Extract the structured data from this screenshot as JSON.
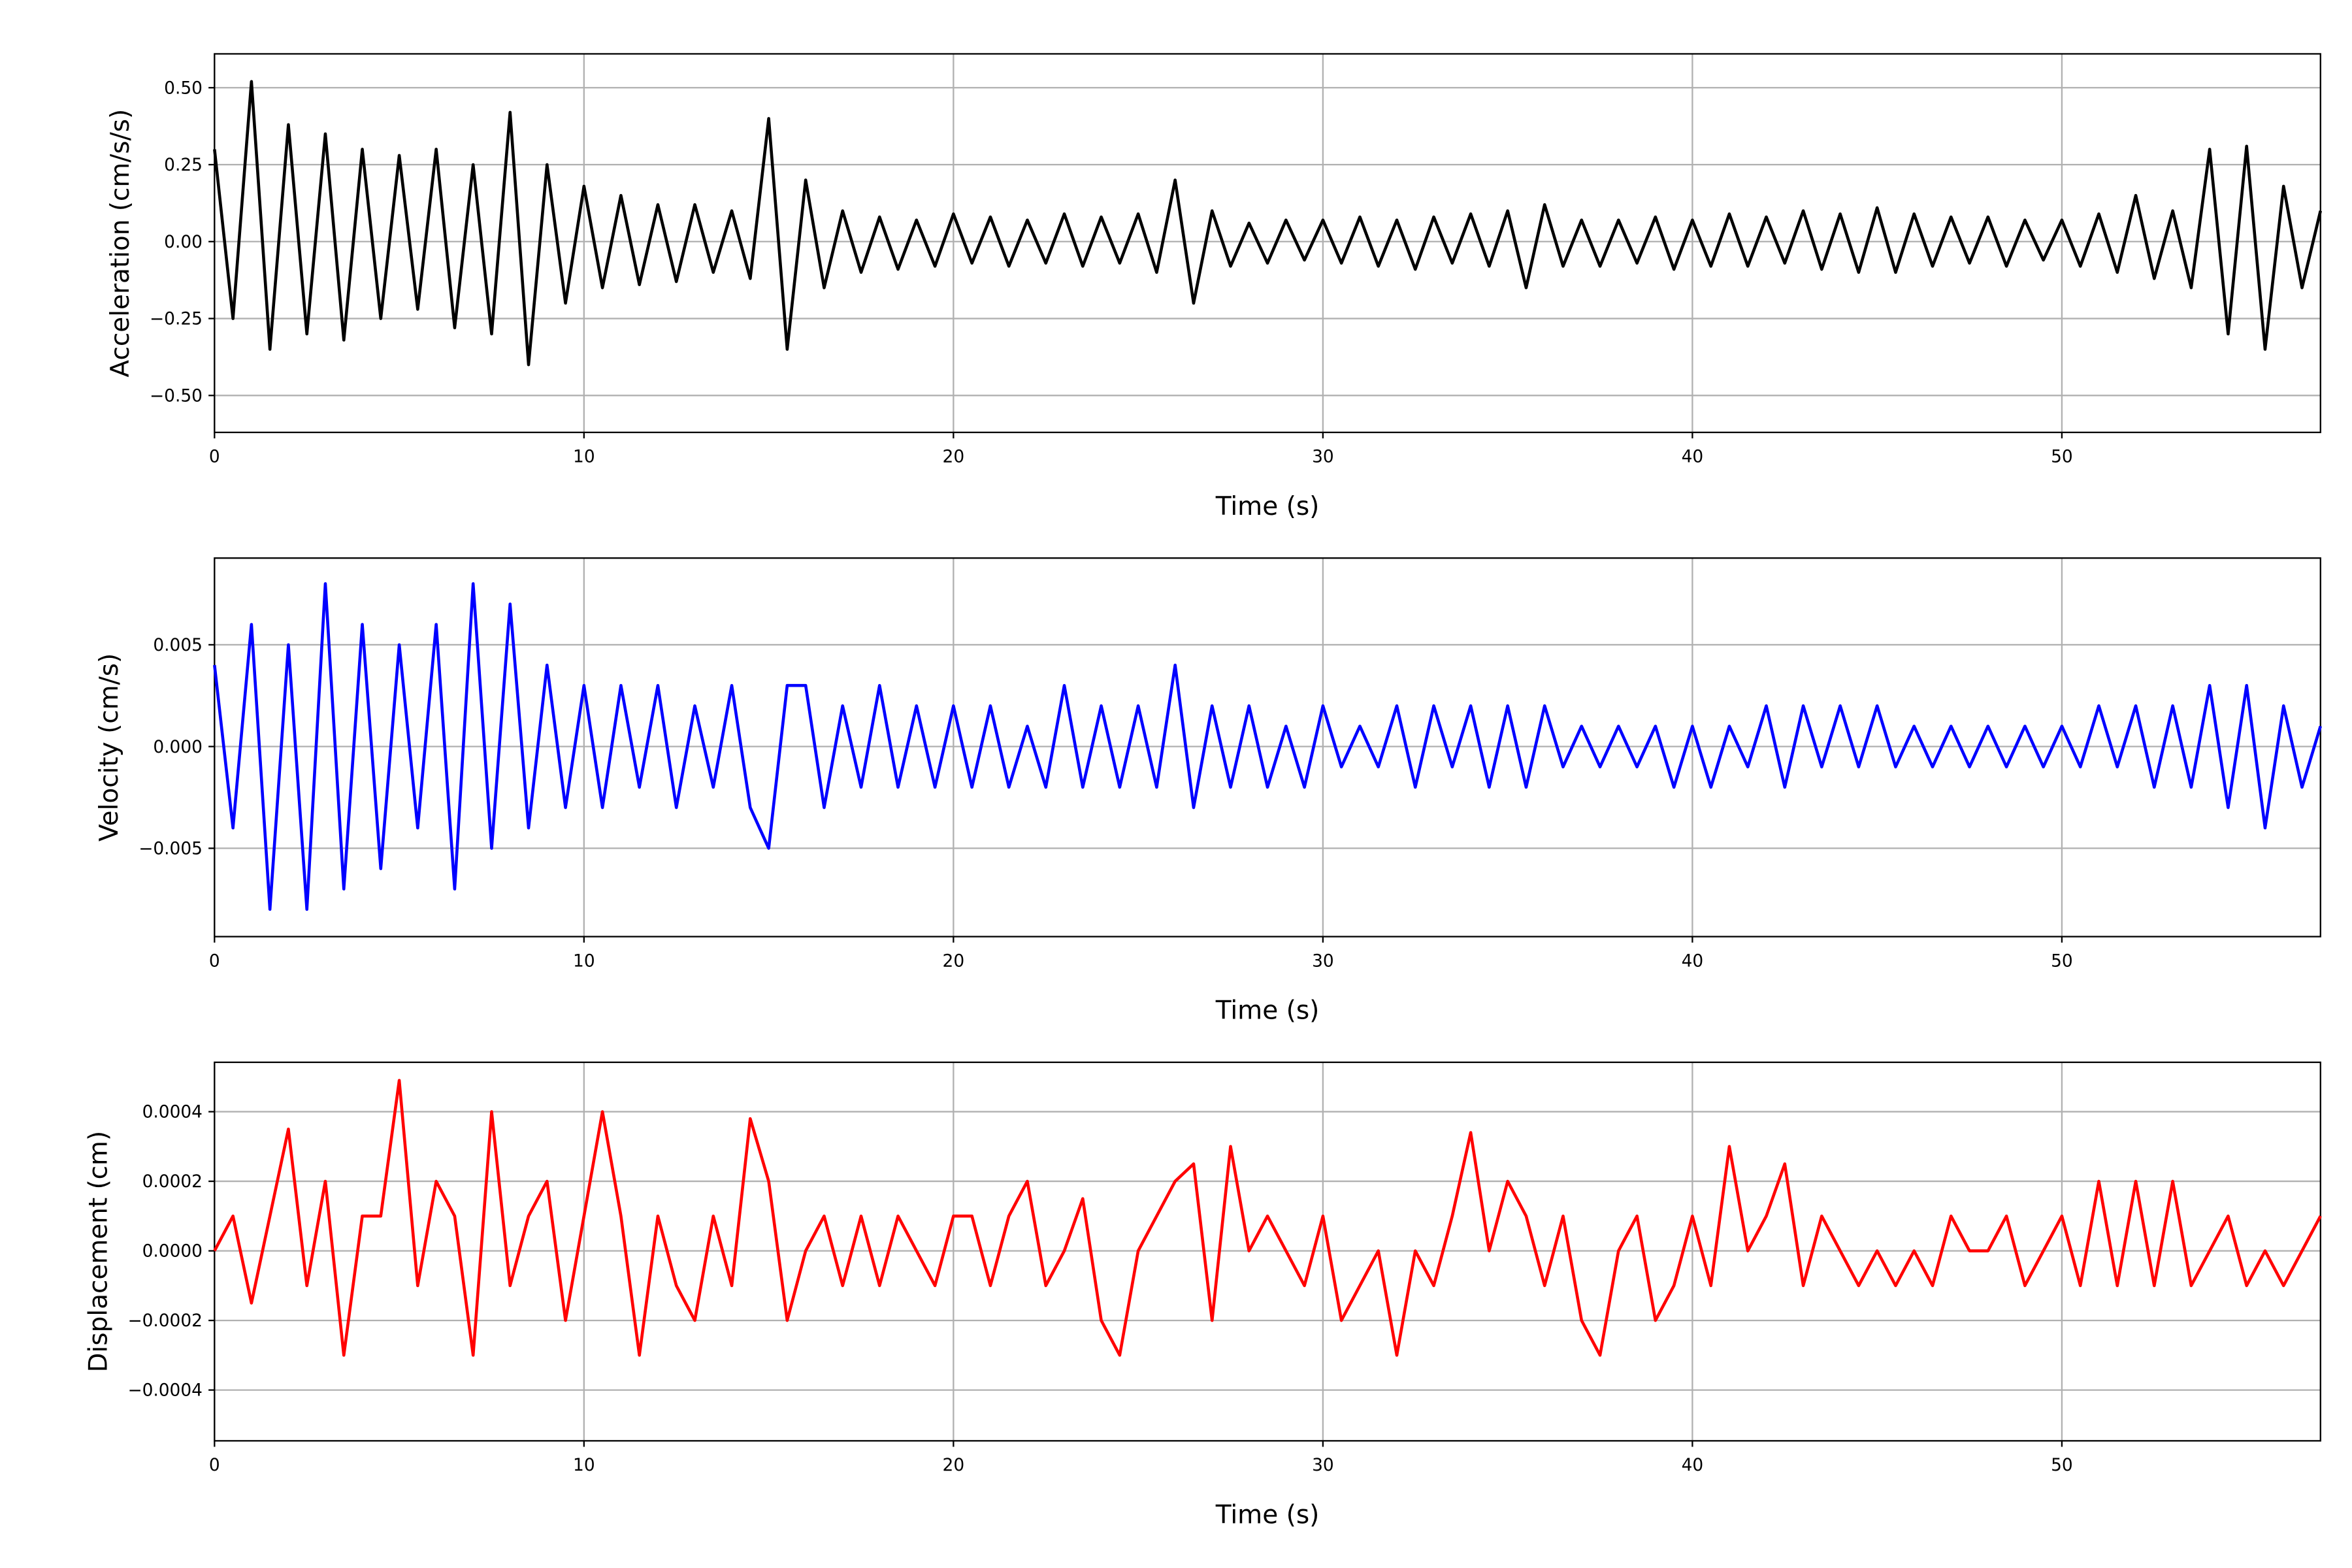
{
  "chart_data": [
    {
      "type": "line",
      "ylabel": "Acceleration (cm/s/s)",
      "xlabel": "Time (s)",
      "grid": true,
      "xlim": [
        0,
        57
      ],
      "xticks": [
        0,
        10,
        20,
        30,
        40,
        50
      ],
      "ylim": [
        -0.62,
        0.61
      ],
      "yticks": [
        {
          "value": -0.5,
          "label": "−0.50"
        },
        {
          "value": -0.25,
          "label": "−0.25"
        },
        {
          "value": 0,
          "label": "0.00"
        },
        {
          "value": 0.25,
          "label": "0.25"
        },
        {
          "value": 0.5,
          "label": "0.50"
        }
      ],
      "color": "#000000",
      "x": [
        0,
        0.5,
        1,
        1.5,
        2,
        2.5,
        3,
        3.5,
        4,
        4.5,
        5,
        5.5,
        6,
        6.5,
        7,
        7.5,
        8,
        8.5,
        9,
        9.5,
        10,
        10.5,
        11,
        11.5,
        12,
        12.5,
        13,
        13.5,
        14,
        14.5,
        15,
        15.5,
        16,
        16.5,
        17,
        17.5,
        18,
        18.5,
        19,
        19.5,
        20,
        20.5,
        21,
        21.5,
        22,
        22.5,
        23,
        23.5,
        24,
        24.5,
        25,
        25.5,
        26,
        26.5,
        27,
        27.5,
        28,
        28.5,
        29,
        29.5,
        30,
        30.5,
        31,
        31.5,
        32,
        32.5,
        33,
        33.5,
        34,
        34.5,
        35,
        35.5,
        36,
        36.5,
        37,
        37.5,
        38,
        38.5,
        39,
        39.5,
        40,
        40.5,
        41,
        41.5,
        42,
        42.5,
        43,
        43.5,
        44,
        44.5,
        45,
        45.5,
        46,
        46.5,
        47,
        47.5,
        48,
        48.5,
        49,
        49.5,
        50,
        50.5,
        51,
        51.5,
        52,
        52.5,
        53,
        53.5,
        54,
        54.5,
        55,
        55.5,
        56,
        56.5,
        57
      ],
      "values": [
        0.3,
        -0.25,
        0.52,
        -0.35,
        0.38,
        -0.3,
        0.35,
        -0.32,
        0.3,
        -0.25,
        0.28,
        -0.22,
        0.3,
        -0.28,
        0.25,
        -0.3,
        0.42,
        -0.4,
        0.25,
        -0.2,
        0.18,
        -0.15,
        0.15,
        -0.14,
        0.12,
        -0.13,
        0.12,
        -0.1,
        0.1,
        -0.12,
        0.4,
        -0.35,
        0.2,
        -0.15,
        0.1,
        -0.1,
        0.08,
        -0.09,
        0.07,
        -0.08,
        0.09,
        -0.07,
        0.08,
        -0.08,
        0.07,
        -0.07,
        0.09,
        -0.08,
        0.08,
        -0.07,
        0.09,
        -0.1,
        0.2,
        -0.2,
        0.1,
        -0.08,
        0.06,
        -0.07,
        0.07,
        -0.06,
        0.07,
        -0.07,
        0.08,
        -0.08,
        0.07,
        -0.09,
        0.08,
        -0.07,
        0.09,
        -0.08,
        0.1,
        -0.15,
        0.12,
        -0.08,
        0.07,
        -0.08,
        0.07,
        -0.07,
        0.08,
        -0.09,
        0.07,
        -0.08,
        0.09,
        -0.08,
        0.08,
        -0.07,
        0.1,
        -0.09,
        0.09,
        -0.1,
        0.11,
        -0.1,
        0.09,
        -0.08,
        0.08,
        -0.07,
        0.08,
        -0.08,
        0.07,
        -0.06,
        0.07,
        -0.08,
        0.09,
        -0.1,
        0.15,
        -0.12,
        0.1,
        -0.15,
        0.3,
        -0.3,
        0.31,
        -0.35,
        0.18,
        -0.15,
        0.1
      ]
    },
    {
      "type": "line",
      "ylabel": "Velocity (cm/s)",
      "xlabel": "Time (s)",
      "grid": true,
      "xlim": [
        0,
        57
      ],
      "xticks": [
        0,
        10,
        20,
        30,
        40,
        50
      ],
      "ylim": [
        -0.00934,
        0.00926
      ],
      "yticks": [
        {
          "value": -0.005,
          "label": "−0.005"
        },
        {
          "value": 0,
          "label": "0.000"
        },
        {
          "value": 0.005,
          "label": "0.005"
        }
      ],
      "color": "#0000ff",
      "x": [
        0,
        0.5,
        1,
        1.5,
        2,
        2.5,
        3,
        3.5,
        4,
        4.5,
        5,
        5.5,
        6,
        6.5,
        7,
        7.5,
        8,
        8.5,
        9,
        9.5,
        10,
        10.5,
        11,
        11.5,
        12,
        12.5,
        13,
        13.5,
        14,
        14.5,
        15,
        15.5,
        16,
        16.5,
        17,
        17.5,
        18,
        18.5,
        19,
        19.5,
        20,
        20.5,
        21,
        21.5,
        22,
        22.5,
        23,
        23.5,
        24,
        24.5,
        25,
        25.5,
        26,
        26.5,
        27,
        27.5,
        28,
        28.5,
        29,
        29.5,
        30,
        30.5,
        31,
        31.5,
        32,
        32.5,
        33,
        33.5,
        34,
        34.5,
        35,
        35.5,
        36,
        36.5,
        37,
        37.5,
        38,
        38.5,
        39,
        39.5,
        40,
        40.5,
        41,
        41.5,
        42,
        42.5,
        43,
        43.5,
        44,
        44.5,
        45,
        45.5,
        46,
        46.5,
        47,
        47.5,
        48,
        48.5,
        49,
        49.5,
        50,
        50.5,
        51,
        51.5,
        52,
        52.5,
        53,
        53.5,
        54,
        54.5,
        55,
        55.5,
        56,
        56.5,
        57
      ],
      "values": [
        0.004,
        -0.004,
        0.006,
        -0.008,
        0.005,
        -0.008,
        0.008,
        -0.007,
        0.006,
        -0.006,
        0.005,
        -0.004,
        0.006,
        -0.007,
        0.008,
        -0.005,
        0.007,
        -0.004,
        0.004,
        -0.003,
        0.003,
        -0.003,
        0.003,
        -0.002,
        0.003,
        -0.003,
        0.002,
        -0.002,
        0.003,
        -0.003,
        -0.005,
        0.003,
        0.003,
        -0.003,
        0.002,
        -0.002,
        0.003,
        -0.002,
        0.002,
        -0.002,
        0.002,
        -0.002,
        0.002,
        -0.002,
        0.001,
        -0.002,
        0.003,
        -0.002,
        0.002,
        -0.002,
        0.002,
        -0.002,
        0.004,
        -0.003,
        0.002,
        -0.002,
        0.002,
        -0.002,
        0.001,
        -0.002,
        0.002,
        -0.001,
        0.001,
        -0.001,
        0.002,
        -0.002,
        0.002,
        -0.001,
        0.002,
        -0.002,
        0.002,
        -0.002,
        0.002,
        -0.001,
        0.001,
        -0.001,
        0.001,
        -0.001,
        0.001,
        -0.002,
        0.001,
        -0.002,
        0.001,
        -0.001,
        0.002,
        -0.002,
        0.002,
        -0.001,
        0.002,
        -0.001,
        0.002,
        -0.001,
        0.001,
        -0.001,
        0.001,
        -0.001,
        0.001,
        -0.001,
        0.001,
        -0.001,
        0.001,
        -0.001,
        0.002,
        -0.001,
        0.002,
        -0.002,
        0.002,
        -0.002,
        0.003,
        -0.003,
        0.003,
        -0.004,
        0.002,
        -0.002,
        0.001
      ]
    },
    {
      "type": "line",
      "ylabel": "Displacement (cm)",
      "xlabel": "Time (s)",
      "grid": true,
      "xlim": [
        0,
        57
      ],
      "xticks": [
        0,
        10,
        20,
        30,
        40,
        50
      ],
      "ylim": [
        -0.000546,
        0.000542
      ],
      "yticks": [
        {
          "value": -0.0004,
          "label": "−0.0004"
        },
        {
          "value": -0.0002,
          "label": "−0.0002"
        },
        {
          "value": 0,
          "label": "0.0000"
        },
        {
          "value": 0.0002,
          "label": "0.0002"
        },
        {
          "value": 0.0004,
          "label": "0.0004"
        }
      ],
      "color": "#ff0000",
      "x": [
        0,
        0.5,
        1,
        1.5,
        2,
        2.5,
        3,
        3.5,
        4,
        4.5,
        5,
        5.5,
        6,
        6.5,
        7,
        7.5,
        8,
        8.5,
        9,
        9.5,
        10,
        10.5,
        11,
        11.5,
        12,
        12.5,
        13,
        13.5,
        14,
        14.5,
        15,
        15.5,
        16,
        16.5,
        17,
        17.5,
        18,
        18.5,
        19,
        19.5,
        20,
        20.5,
        21,
        21.5,
        22,
        22.5,
        23,
        23.5,
        24,
        24.5,
        25,
        25.5,
        26,
        26.5,
        27,
        27.5,
        28,
        28.5,
        29,
        29.5,
        30,
        30.5,
        31,
        31.5,
        32,
        32.5,
        33,
        33.5,
        34,
        34.5,
        35,
        35.5,
        36,
        36.5,
        37,
        37.5,
        38,
        38.5,
        39,
        39.5,
        40,
        40.5,
        41,
        41.5,
        42,
        42.5,
        43,
        43.5,
        44,
        44.5,
        45,
        45.5,
        46,
        46.5,
        47,
        47.5,
        48,
        48.5,
        49,
        49.5,
        50,
        50.5,
        51,
        51.5,
        52,
        52.5,
        53,
        53.5,
        54,
        54.5,
        55,
        55.5,
        56,
        56.5,
        57
      ],
      "values": [
        0,
        0.0001,
        -0.00015,
        0.0001,
        0.00035,
        -0.0001,
        0.0002,
        -0.0003,
        0.0001,
        0.0001,
        0.00049,
        -0.0001,
        0.0002,
        0.0001,
        -0.0003,
        0.0004,
        -0.0001,
        0.0001,
        0.0002,
        -0.0002,
        0.0001,
        0.0004,
        0.0001,
        -0.0003,
        0.0001,
        -0.0001,
        -0.0002,
        0.0001,
        -0.0001,
        0.00038,
        0.0002,
        -0.0002,
        0,
        0.0001,
        -0.0001,
        0.0001,
        -0.0001,
        0.0001,
        0,
        -0.0001,
        0.0001,
        0.0001,
        -0.0001,
        0.0001,
        0.0002,
        -0.0001,
        0,
        0.00015,
        -0.0002,
        -0.0003,
        0,
        0.0001,
        0.0002,
        0.00025,
        -0.0002,
        0.0003,
        0,
        0.0001,
        0,
        -0.0001,
        0.0001,
        -0.0002,
        -0.0001,
        0,
        -0.0003,
        0,
        -0.0001,
        0.0001,
        0.00034,
        0,
        0.0002,
        0.0001,
        -0.0001,
        0.0001,
        -0.0002,
        -0.0003,
        0,
        0.0001,
        -0.0002,
        -0.0001,
        0.0001,
        -0.0001,
        0.0003,
        0,
        0.0001,
        0.00025,
        -0.0001,
        0.0001,
        0,
        -0.0001,
        0,
        -0.0001,
        0,
        -0.0001,
        0.0001,
        0,
        0,
        0.0001,
        -0.0001,
        0,
        0.0001,
        -0.0001,
        0.0002,
        -0.0001,
        0.0002,
        -0.0001,
        0.0002,
        -0.0001,
        0,
        0.0001,
        -0.0001,
        0,
        -0.0001,
        0,
        0.0001
      ]
    }
  ]
}
